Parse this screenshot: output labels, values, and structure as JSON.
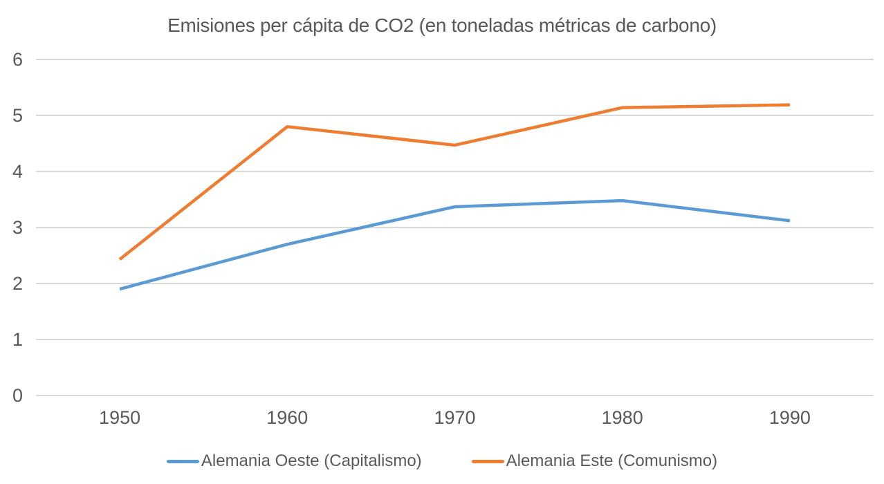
{
  "chart_data": {
    "type": "line",
    "title": "Emisiones per cápita de CO2 (en toneladas métricas de carbono)",
    "categories": [
      "1950",
      "1960",
      "1970",
      "1980",
      "1990"
    ],
    "series": [
      {
        "name": "Alemania Oeste (Capitalismo)",
        "color": "#5B9BD5",
        "values": [
          1.9,
          2.7,
          3.37,
          3.48,
          3.12
        ]
      },
      {
        "name": "Alemania Este (Comunismo)",
        "color": "#ED7D31",
        "values": [
          2.43,
          4.8,
          4.47,
          5.14,
          5.19
        ]
      }
    ],
    "xlabel": "",
    "ylabel": "",
    "ylim": [
      0,
      6
    ],
    "yticks": [
      0,
      1,
      2,
      3,
      4,
      5,
      6
    ],
    "grid": true,
    "legend_position": "bottom",
    "colors": {
      "gridline": "#D9D9D9",
      "text": "#595959",
      "background": "#FFFFFF"
    }
  }
}
